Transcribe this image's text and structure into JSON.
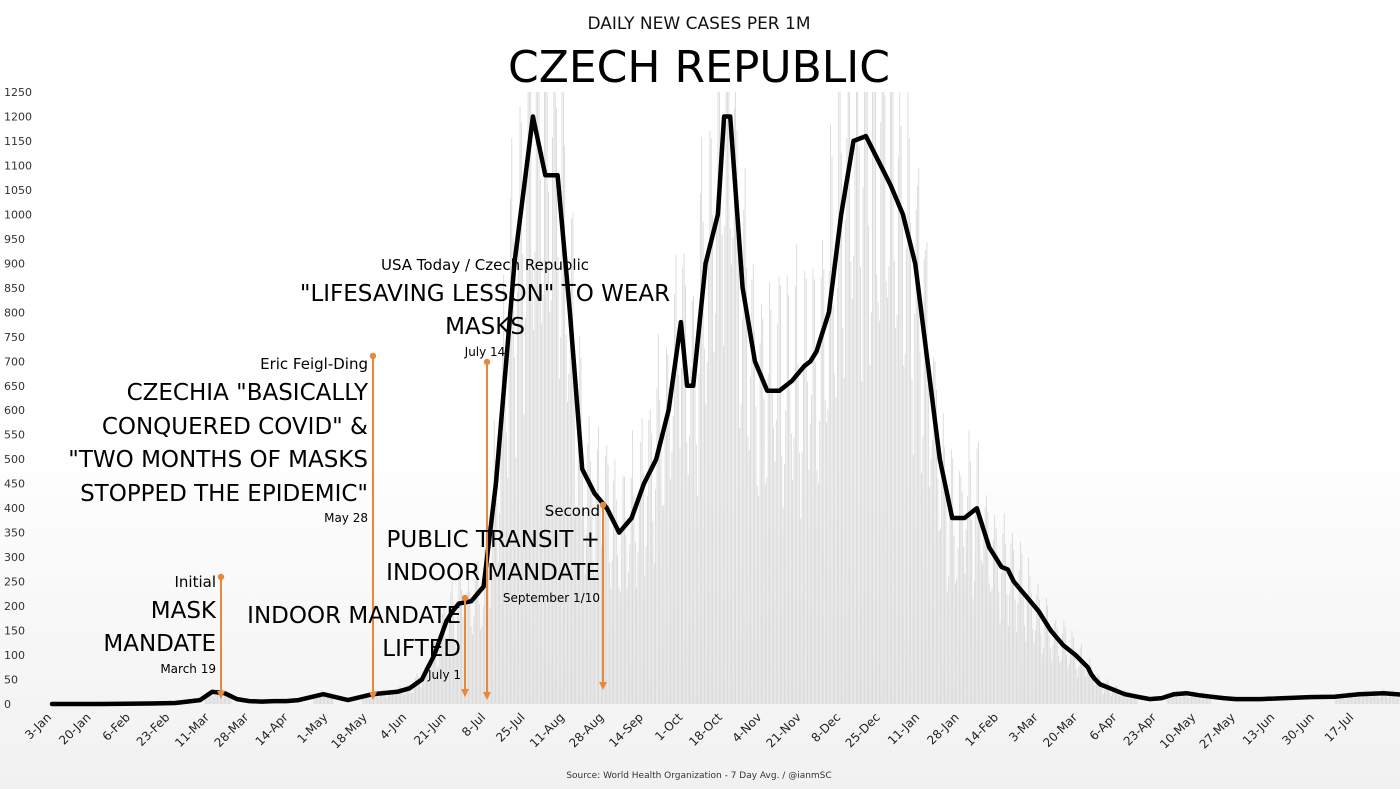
{
  "chart_data": {
    "type": "line",
    "title": "CZECH REPUBLIC",
    "subtitle": "DAILY NEW CASES PER 1M",
    "source": "Source: World Health Organization - 7 Day Avg. / @ianmSC",
    "xlabel": "",
    "ylabel": "",
    "ylim": [
      0,
      1250
    ],
    "y_ticks": [
      0,
      50,
      100,
      150,
      200,
      250,
      300,
      350,
      400,
      450,
      500,
      550,
      600,
      650,
      700,
      750,
      800,
      850,
      900,
      950,
      1000,
      1050,
      1100,
      1150,
      1200,
      1250
    ],
    "x_ticks": [
      "3-Jan",
      "20-Jan",
      "6-Feb",
      "23-Feb",
      "11-Mar",
      "28-Mar",
      "14-Apr",
      "1-May",
      "18-May",
      "4-Jun",
      "21-Jun",
      "8-Jul",
      "25-Jul",
      "11-Aug",
      "28-Aug",
      "14-Sep",
      "1-Oct",
      "18-Oct",
      "4-Nov",
      "21-Nov",
      "8-Dec",
      "25-Dec",
      "11-Jan",
      "28-Jan",
      "14-Feb",
      "3-Mar",
      "20-Mar",
      "6-Apr",
      "23-Apr",
      "10-May",
      "27-May",
      "13-Jun",
      "30-Jun",
      "17-Jul"
    ],
    "grid": false,
    "series": [
      {
        "x": [
          0,
          4,
          8,
          10,
          12,
          13,
          14,
          15,
          16,
          17,
          18,
          19,
          20,
          22,
          24,
          26,
          28,
          29,
          30,
          31,
          32,
          32.5,
          33,
          34,
          35,
          36,
          37,
          37.5,
          38,
          38.5,
          39,
          40,
          41,
          42,
          43,
          44,
          45,
          46,
          47,
          48,
          49,
          50,
          51,
          51.5,
          52,
          53,
          54,
          54.5,
          55,
          56,
          57,
          58,
          59,
          60,
          61,
          61.5,
          62,
          63,
          64,
          65,
          66,
          68,
          69,
          70,
          71,
          72,
          73,
          74,
          75,
          76,
          77,
          77.5,
          78,
          79,
          80,
          81,
          82,
          83,
          84,
          84.3,
          84.6,
          85,
          86,
          86.5,
          87,
          88,
          89,
          90,
          91,
          92,
          93,
          94,
          95,
          96,
          98,
          100,
          102,
          104,
          106,
          108,
          110
        ],
        "values": [
          0,
          0,
          1,
          2,
          8,
          25,
          22,
          10,
          6,
          5,
          6,
          6,
          8,
          20,
          8,
          20,
          25,
          32,
          50,
          100,
          170,
          190,
          205,
          210,
          240,
          450,
          750,
          900,
          1000,
          1100,
          1200,
          1080,
          1080,
          800,
          480,
          430,
          400,
          350,
          380,
          450,
          500,
          600,
          780,
          650,
          650,
          900,
          1000,
          1200,
          1200,
          850,
          700,
          640,
          640,
          660,
          690,
          700,
          720,
          800,
          1000,
          1150,
          1160,
          1060,
          1000,
          900,
          700,
          500,
          380,
          380,
          400,
          320,
          280,
          275,
          250,
          220,
          190,
          150,
          120,
          100,
          75,
          60,
          50,
          40,
          30,
          25,
          20,
          15,
          10,
          12,
          20,
          22,
          18,
          15,
          12,
          10,
          10,
          12,
          14,
          15,
          20,
          22,
          18
        ]
      }
    ]
  },
  "annotations": [
    {
      "id": "initial",
      "lines": [
        "Initial",
        "MASK",
        "MANDATE"
      ],
      "date": "March 19"
    },
    {
      "id": "feigl",
      "lines": [
        "Eric Feigl-Ding",
        "CZECHIA \"BASICALLY",
        "CONQUERED COVID\" &",
        "\"TWO MONTHS OF MASKS",
        "STOPPED THE EPIDEMIC\""
      ],
      "date": "May 28"
    },
    {
      "id": "lifted",
      "lines": [
        "INDOOR MANDATE",
        "LIFTED"
      ],
      "date": "July 1"
    },
    {
      "id": "usa",
      "lines": [
        "USA Today / Czech Republic",
        "\"LIFESAVING LESSON\" TO WEAR",
        "MASKS"
      ],
      "date": "July 14"
    },
    {
      "id": "second",
      "lines": [
        "Second",
        "PUBLIC TRANSIT +",
        "INDOOR MANDATE"
      ],
      "date": "September 1/10"
    }
  ],
  "colors": {
    "line": "#000000",
    "arrow": "#e8883a",
    "daily_bars": "#d6d6d6"
  }
}
